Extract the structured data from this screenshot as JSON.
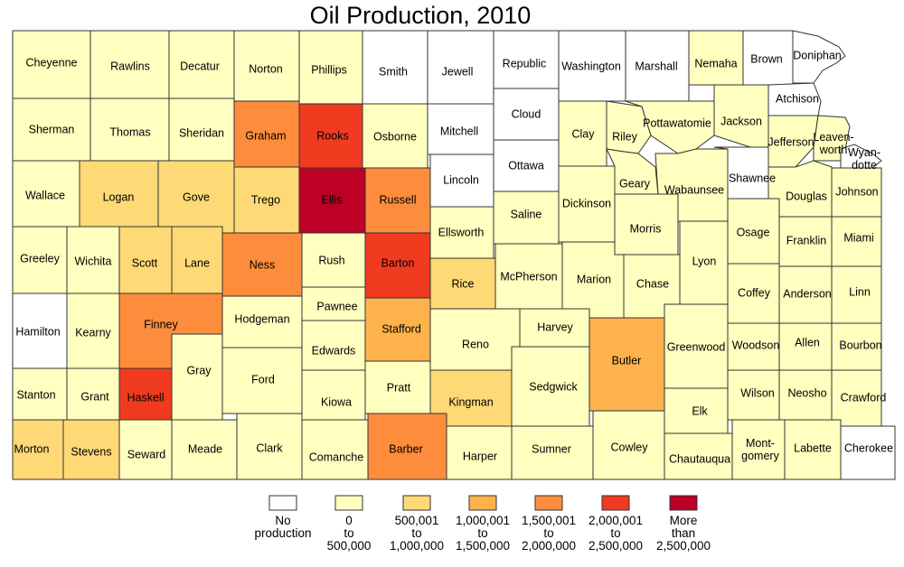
{
  "title": "Oil Production, 2010",
  "legend": [
    {
      "key": "none",
      "lines": [
        "No",
        "production"
      ],
      "color": "#ffffff"
    },
    {
      "key": "c1",
      "lines": [
        "0",
        "to",
        "500,000"
      ],
      "color": "#ffffbf"
    },
    {
      "key": "c2",
      "lines": [
        "500,001",
        "to",
        "1,000,000"
      ],
      "color": "#fed976"
    },
    {
      "key": "c3",
      "lines": [
        "1,000,001",
        "to",
        "1,500,000"
      ],
      "color": "#feb24c"
    },
    {
      "key": "c4",
      "lines": [
        "1,500,001",
        "to",
        "2,000,000"
      ],
      "color": "#fd8d3c"
    },
    {
      "key": "c5",
      "lines": [
        "2,000,001",
        "to",
        "2,500,000"
      ],
      "color": "#f03b20"
    },
    {
      "key": "c6",
      "lines": [
        "More",
        "than",
        "2,500,000"
      ],
      "color": "#bd0026"
    }
  ],
  "counties": [
    {
      "name": "Cheyenne",
      "cls": "c1"
    },
    {
      "name": "Rawlins",
      "cls": "c1"
    },
    {
      "name": "Decatur",
      "cls": "c1"
    },
    {
      "name": "Norton",
      "cls": "c1"
    },
    {
      "name": "Phillips",
      "cls": "c1"
    },
    {
      "name": "Smith",
      "cls": "none"
    },
    {
      "name": "Jewell",
      "cls": "none"
    },
    {
      "name": "Republic",
      "cls": "none"
    },
    {
      "name": "Washington",
      "cls": "none"
    },
    {
      "name": "Marshall",
      "cls": "none"
    },
    {
      "name": "Nemaha",
      "cls": "c1"
    },
    {
      "name": "Brown",
      "cls": "none"
    },
    {
      "name": "Doniphan",
      "cls": "none"
    },
    {
      "name": "Atchison",
      "cls": "none"
    },
    {
      "name": "Sherman",
      "cls": "c1"
    },
    {
      "name": "Thomas",
      "cls": "c1"
    },
    {
      "name": "Sheridan",
      "cls": "c1"
    },
    {
      "name": "Graham",
      "cls": "c4"
    },
    {
      "name": "Rooks",
      "cls": "c5"
    },
    {
      "name": "Osborne",
      "cls": "c1"
    },
    {
      "name": "Mitchell",
      "cls": "none"
    },
    {
      "name": "Cloud",
      "cls": "none"
    },
    {
      "name": "Clay",
      "cls": "c1"
    },
    {
      "name": "Riley",
      "cls": "c1"
    },
    {
      "name": "Pottawatomie",
      "cls": "c1"
    },
    {
      "name": "Jackson",
      "cls": "c1"
    },
    {
      "name": "Jefferson",
      "cls": "c1"
    },
    {
      "name": "Leaven-worth",
      "cls": "c1"
    },
    {
      "name": "Wyan-dotte",
      "cls": "none"
    },
    {
      "name": "Wallace",
      "cls": "c1"
    },
    {
      "name": "Logan",
      "cls": "c2"
    },
    {
      "name": "Gove",
      "cls": "c2"
    },
    {
      "name": "Trego",
      "cls": "c2"
    },
    {
      "name": "Ellis",
      "cls": "c6"
    },
    {
      "name": "Russell",
      "cls": "c4"
    },
    {
      "name": "Lincoln",
      "cls": "none"
    },
    {
      "name": "Ottawa",
      "cls": "none"
    },
    {
      "name": "Saline",
      "cls": "c1"
    },
    {
      "name": "Dickinson",
      "cls": "c1"
    },
    {
      "name": "Geary",
      "cls": "c1"
    },
    {
      "name": "Wabaunsee",
      "cls": "c1"
    },
    {
      "name": "Shawnee",
      "cls": "none"
    },
    {
      "name": "Douglas",
      "cls": "c1"
    },
    {
      "name": "Johnson",
      "cls": "c1"
    },
    {
      "name": "Greeley",
      "cls": "c1"
    },
    {
      "name": "Wichita",
      "cls": "c1"
    },
    {
      "name": "Scott",
      "cls": "c2"
    },
    {
      "name": "Lane",
      "cls": "c2"
    },
    {
      "name": "Ness",
      "cls": "c4"
    },
    {
      "name": "Rush",
      "cls": "c1"
    },
    {
      "name": "Barton",
      "cls": "c5"
    },
    {
      "name": "Ellsworth",
      "cls": "c1"
    },
    {
      "name": "Rice",
      "cls": "c2"
    },
    {
      "name": "McPherson",
      "cls": "c1"
    },
    {
      "name": "Marion",
      "cls": "c1"
    },
    {
      "name": "Morris",
      "cls": "c1"
    },
    {
      "name": "Chase",
      "cls": "c1"
    },
    {
      "name": "Lyon",
      "cls": "c1"
    },
    {
      "name": "Osage",
      "cls": "c1"
    },
    {
      "name": "Franklin",
      "cls": "c1"
    },
    {
      "name": "Miami",
      "cls": "c1"
    },
    {
      "name": "Hamilton",
      "cls": "none"
    },
    {
      "name": "Kearny",
      "cls": "c1"
    },
    {
      "name": "Finney",
      "cls": "c4"
    },
    {
      "name": "Hodgeman",
      "cls": "c1"
    },
    {
      "name": "Pawnee",
      "cls": "c1"
    },
    {
      "name": "Stafford",
      "cls": "c3"
    },
    {
      "name": "Reno",
      "cls": "c1"
    },
    {
      "name": "Harvey",
      "cls": "c1"
    },
    {
      "name": "Butler",
      "cls": "c3"
    },
    {
      "name": "Greenwood",
      "cls": "c1"
    },
    {
      "name": "Coffey",
      "cls": "c1"
    },
    {
      "name": "Anderson",
      "cls": "c1"
    },
    {
      "name": "Linn",
      "cls": "c1"
    },
    {
      "name": "Woodson",
      "cls": "c1"
    },
    {
      "name": "Allen",
      "cls": "c1"
    },
    {
      "name": "Bourbon",
      "cls": "c1"
    },
    {
      "name": "Edwards",
      "cls": "c1"
    },
    {
      "name": "Gray",
      "cls": "c1"
    },
    {
      "name": "Ford",
      "cls": "c1"
    },
    {
      "name": "Stanton",
      "cls": "c1"
    },
    {
      "name": "Grant",
      "cls": "c1"
    },
    {
      "name": "Haskell",
      "cls": "c5"
    },
    {
      "name": "Kiowa",
      "cls": "c1"
    },
    {
      "name": "Pratt",
      "cls": "c1"
    },
    {
      "name": "Kingman",
      "cls": "c2"
    },
    {
      "name": "Sedgwick",
      "cls": "c1"
    },
    {
      "name": "Elk",
      "cls": "c1"
    },
    {
      "name": "Wilson",
      "cls": "c1"
    },
    {
      "name": "Neosho",
      "cls": "c1"
    },
    {
      "name": "Crawford",
      "cls": "c1"
    },
    {
      "name": "Morton",
      "cls": "c2"
    },
    {
      "name": "Stevens",
      "cls": "c2"
    },
    {
      "name": "Seward",
      "cls": "c1"
    },
    {
      "name": "Meade",
      "cls": "c1"
    },
    {
      "name": "Clark",
      "cls": "c1"
    },
    {
      "name": "Comanche",
      "cls": "c1"
    },
    {
      "name": "Barber",
      "cls": "c4"
    },
    {
      "name": "Harper",
      "cls": "c1"
    },
    {
      "name": "Sumner",
      "cls": "c1"
    },
    {
      "name": "Cowley",
      "cls": "c1"
    },
    {
      "name": "Chautauqua",
      "cls": "c1"
    },
    {
      "name": "Mont-gomery",
      "cls": "c1"
    },
    {
      "name": "Labette",
      "cls": "c1"
    },
    {
      "name": "Cherokee",
      "cls": "none"
    }
  ]
}
